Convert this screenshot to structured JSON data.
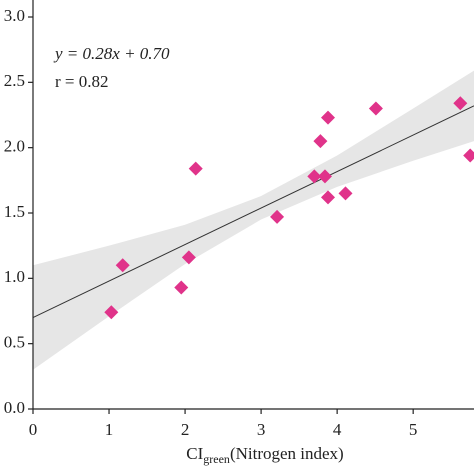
{
  "chart_data": {
    "type": "scatter",
    "x": [
      1.03,
      1.18,
      1.95,
      2.05,
      2.14,
      3.21,
      3.7,
      3.78,
      3.84,
      3.88,
      3.88,
      4.11,
      4.51,
      5.62,
      5.75
    ],
    "values": [
      0.74,
      1.1,
      0.93,
      1.16,
      1.84,
      1.47,
      1.78,
      2.05,
      1.78,
      2.23,
      1.62,
      1.65,
      2.3,
      2.34,
      1.94
    ],
    "color": "#e0338a",
    "xlim": [
      0,
      5.8
    ],
    "ylim": [
      0,
      3.0
    ],
    "xticks": [
      0,
      1,
      2,
      3,
      4,
      5
    ],
    "yticks": [
      {
        "value": 0,
        "label": "0.0"
      },
      0.5,
      {
        "value": 1,
        "label": "1.0"
      },
      1.5,
      {
        "value": 2,
        "label": "2.0"
      },
      2.5,
      {
        "value": 3,
        "label": "3.0"
      }
    ],
    "fit_line": {
      "x": [
        0,
        5.8
      ],
      "y": [
        0.7,
        2.32
      ],
      "color": "#333333"
    },
    "band": {
      "x": [
        0,
        1,
        2,
        3,
        4,
        5,
        5.8
      ],
      "lower": [
        0.3,
        0.71,
        1.11,
        1.45,
        1.7,
        1.9,
        2.05
      ],
      "upper": [
        1.1,
        1.25,
        1.41,
        1.63,
        1.94,
        2.3,
        2.59
      ],
      "color": "#e6e6e6"
    },
    "equation": "y = 0.28x + 0.70",
    "r_label": "r = 0.82",
    "x_label": {
      "main": "CI",
      "sub": "green",
      "rest": "(Nitrogen index)"
    }
  }
}
